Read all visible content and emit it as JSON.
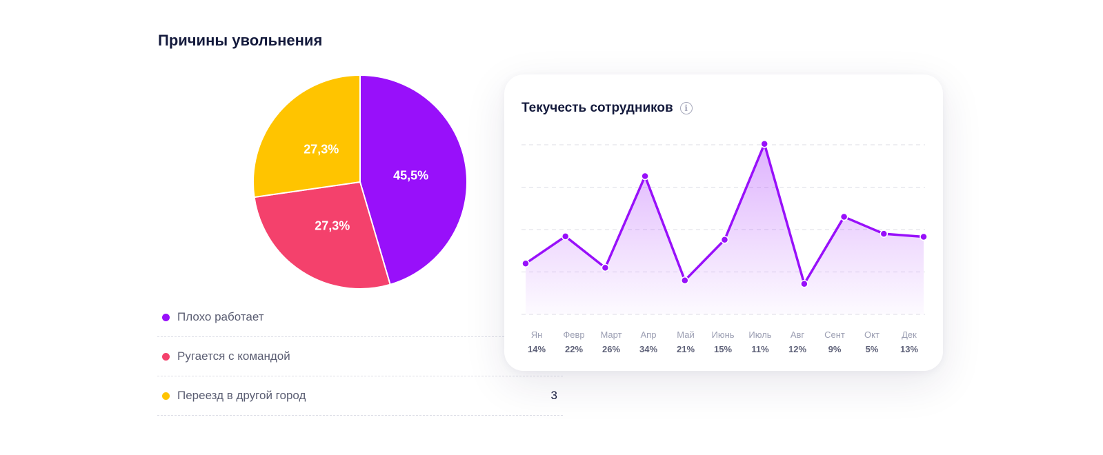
{
  "page": {
    "title": "Причины увольнения"
  },
  "chart_data": [
    {
      "type": "pie",
      "slices": [
        {
          "label": "Плохо работает",
          "value": 45.5,
          "text": "45,5%",
          "color": "#9810fa"
        },
        {
          "label": "Ругается с командой",
          "value": 27.3,
          "text": "27,3%",
          "color": "#f4416c"
        },
        {
          "label": "Переезд в другой город",
          "value": 27.3,
          "text": "27,3%",
          "color": "#ffc400"
        }
      ],
      "legend": [
        {
          "label": "Плохо работает",
          "count": "",
          "color": "#9810fa"
        },
        {
          "label": "Ругается с командой",
          "count": "",
          "color": "#f4416c"
        },
        {
          "label": "Переезд в другой город",
          "count": "3",
          "color": "#ffc400"
        }
      ]
    },
    {
      "type": "area",
      "title": "Текучесть сотрудников",
      "info_icon": "info-icon",
      "categories": [
        "Ян",
        "Февр",
        "Март",
        "Апр",
        "Май",
        "Июнь",
        "Июль",
        "Авг",
        "Сент",
        "Окт",
        "Дек"
      ],
      "value_labels": [
        "14%",
        "22%",
        "26%",
        "34%",
        "21%",
        "15%",
        "11%",
        "12%",
        "9%",
        "5%",
        "13%"
      ],
      "values": [
        1.2,
        1.84,
        1.1,
        3.26,
        0.8,
        1.76,
        4.02,
        0.72,
        2.3,
        1.9,
        1.83
      ],
      "ylim": [
        0,
        4
      ],
      "grid": true,
      "color": "#9810fa"
    }
  ]
}
